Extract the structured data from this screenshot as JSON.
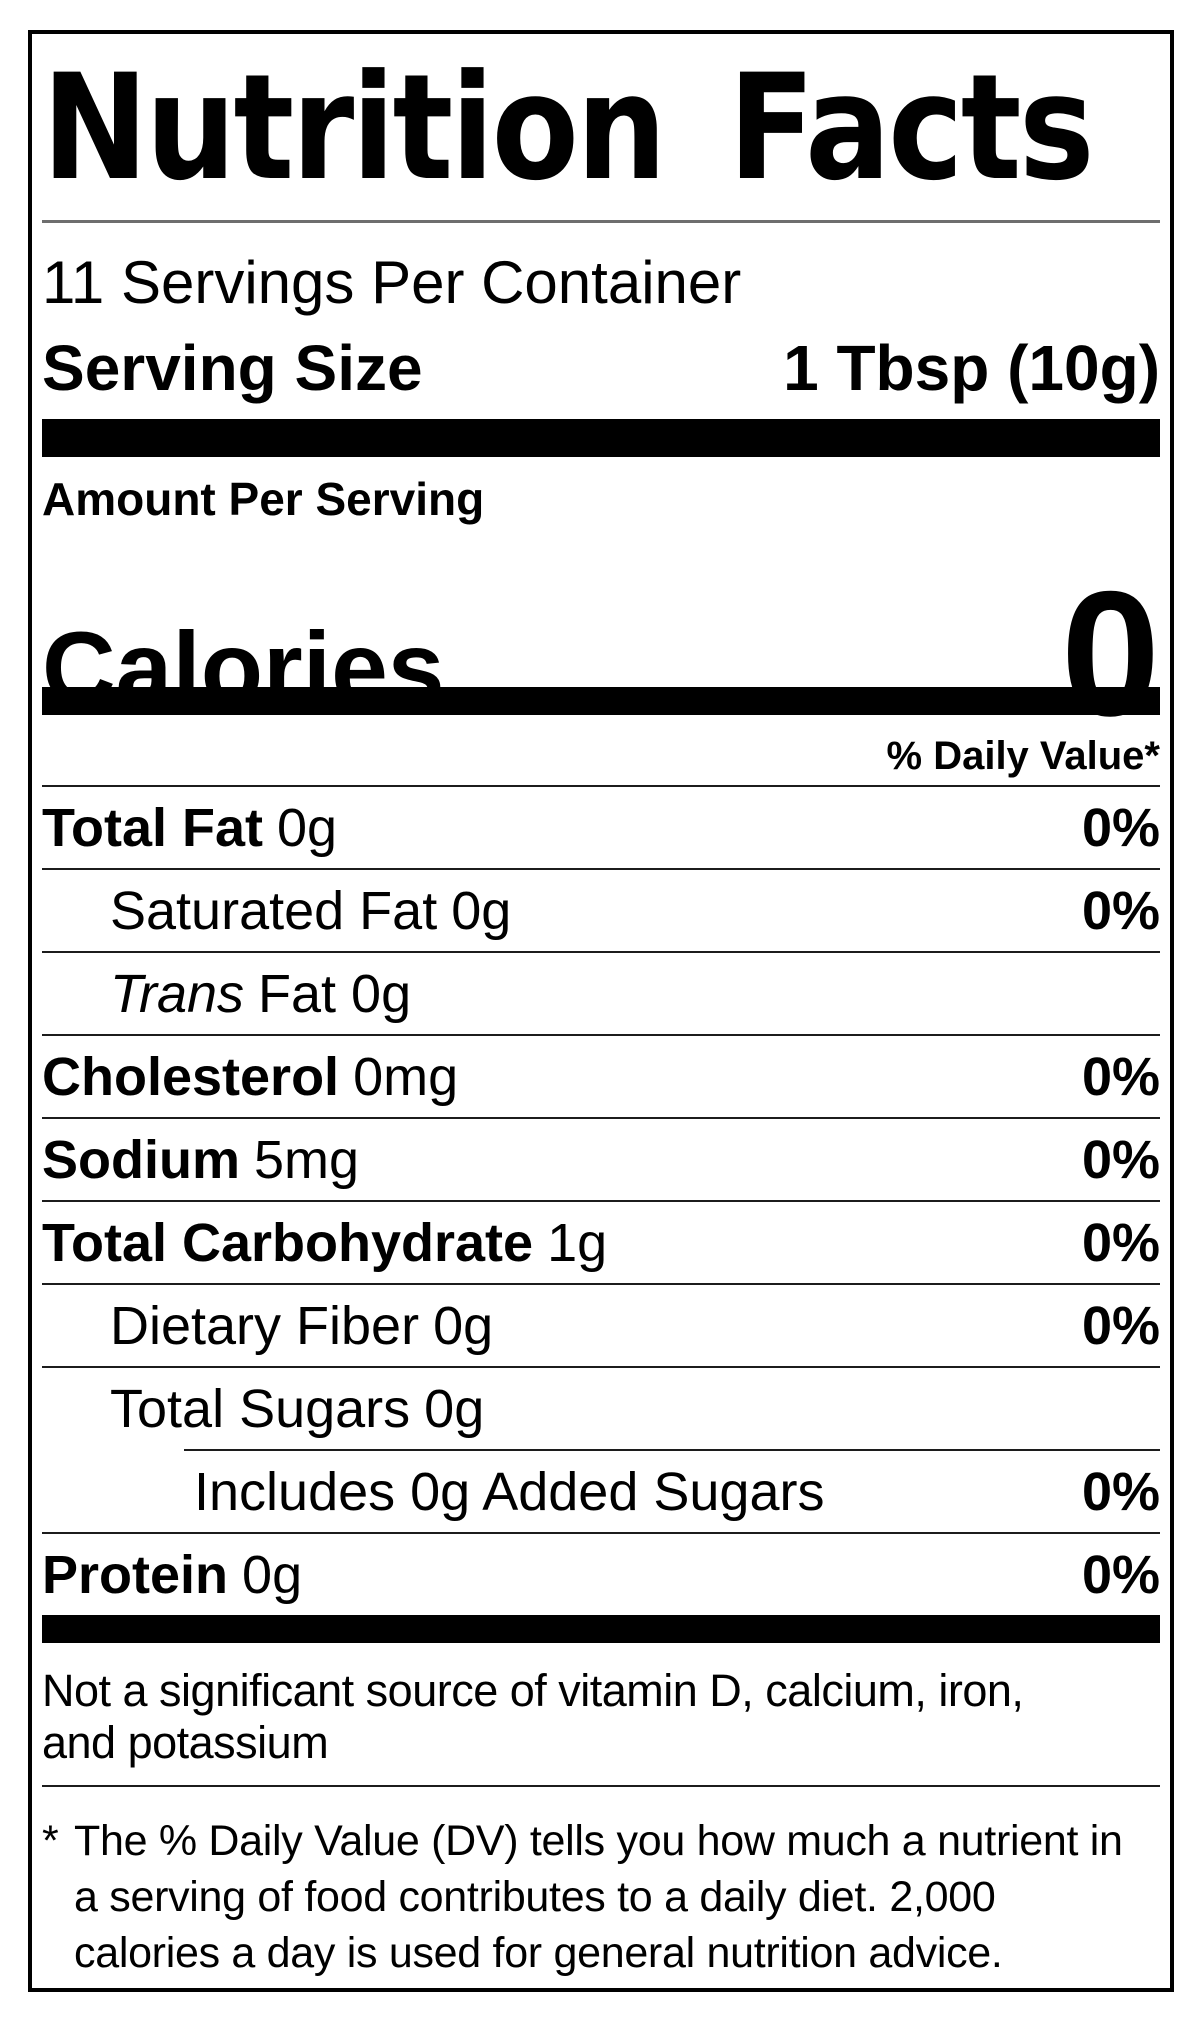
{
  "label": {
    "title": "Nutrition Facts",
    "servings_per_container": "11 Servings Per Container",
    "serving_size_label": "Serving Size",
    "serving_size_value": "1 Tbsp (10g)",
    "amount_per_serving": "Amount Per Serving",
    "calories_label": "Calories",
    "calories_value": "0",
    "daily_value_header": "% Daily Value*",
    "rows": [
      {
        "name": "Total Fat",
        "amount": "0g",
        "dv": "0%",
        "bold": true,
        "italic": false,
        "indent": 0,
        "divider": "full"
      },
      {
        "name": "Saturated Fat",
        "amount": "0g",
        "dv": "0%",
        "bold": false,
        "italic": false,
        "indent": 1,
        "divider": "full"
      },
      {
        "name": "Trans",
        "amount": "Fat 0g",
        "dv": "",
        "bold": false,
        "italic": true,
        "indent": 1,
        "divider": "full"
      },
      {
        "name": "Cholesterol",
        "amount": "0mg",
        "dv": "0%",
        "bold": true,
        "italic": false,
        "indent": 0,
        "divider": "full"
      },
      {
        "name": "Sodium",
        "amount": "5mg",
        "dv": "0%",
        "bold": true,
        "italic": false,
        "indent": 0,
        "divider": "full"
      },
      {
        "name": "Total Carbohydrate",
        "amount": "1g",
        "dv": "0%",
        "bold": true,
        "italic": false,
        "indent": 0,
        "divider": "full"
      },
      {
        "name": "Dietary Fiber",
        "amount": "0g",
        "dv": "0%",
        "bold": false,
        "italic": false,
        "indent": 1,
        "divider": "full"
      },
      {
        "name": "Total Sugars",
        "amount": "0g",
        "dv": "",
        "bold": false,
        "italic": false,
        "indent": 1,
        "divider": "full"
      },
      {
        "name": "Includes 0g Added Sugars",
        "amount": "",
        "dv": "0%",
        "bold": false,
        "italic": false,
        "indent": 2,
        "divider": "indented"
      },
      {
        "name": "Protein",
        "amount": "0g",
        "dv": "0%",
        "bold": true,
        "italic": false,
        "indent": 0,
        "divider": "full"
      }
    ],
    "disclaimer": "Not a significant source of vitamin D, calcium, iron, and potassium",
    "footnote_marker": "*",
    "footnote": "The % Daily Value (DV) tells you how much a nutrient in a serving of food contributes to a daily diet. 2,000 calories a day is used for general nutrition advice.",
    "colors": {
      "background": "#ffffff",
      "text": "#000000",
      "thick_bar": "#000000",
      "thin_rule": "#1c1c1c",
      "title_rule": "#6e6e6e"
    }
  }
}
